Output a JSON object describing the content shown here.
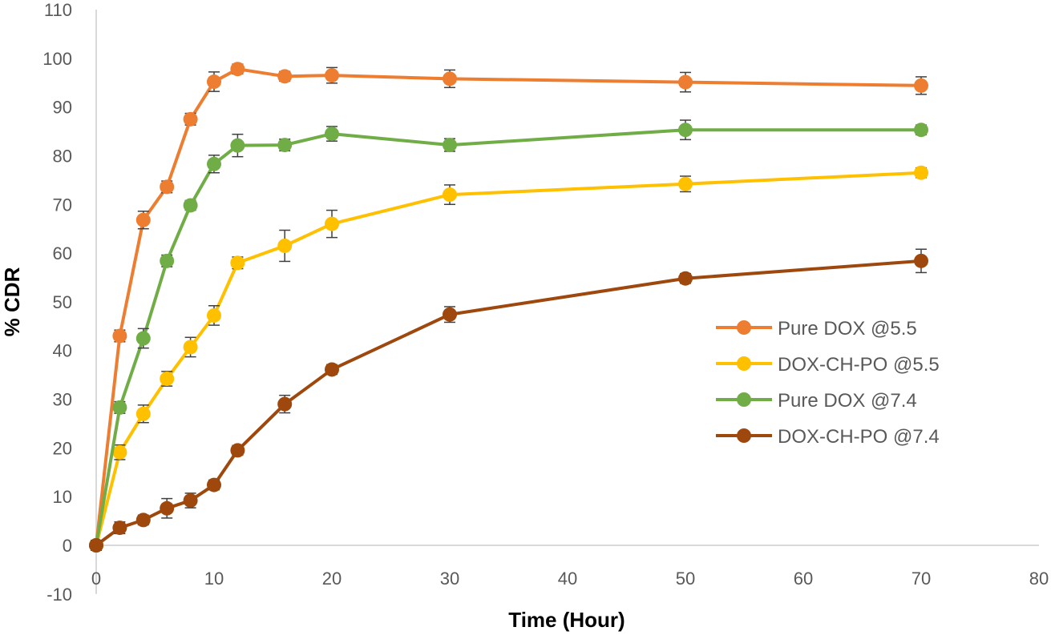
{
  "chart_data": {
    "type": "line",
    "title": "",
    "xlabel": "Time (Hour)",
    "ylabel": "% CDR",
    "xlim": [
      0,
      80
    ],
    "ylim": [
      -10,
      110
    ],
    "xticks": [
      0,
      10,
      20,
      30,
      40,
      50,
      60,
      70,
      80
    ],
    "yticks": [
      -10,
      0,
      10,
      20,
      30,
      40,
      50,
      60,
      70,
      80,
      90,
      100,
      110
    ],
    "grid": false,
    "legend_position": "right",
    "x": [
      0,
      2,
      4,
      6,
      8,
      10,
      12,
      16,
      20,
      30,
      50,
      70
    ],
    "series": [
      {
        "name": "Pure DOX @5.5",
        "color": "#ED7D31",
        "values": [
          0,
          43,
          66.8,
          73.6,
          87.5,
          95.2,
          97.8,
          96.3,
          96.5,
          95.8,
          95.1,
          94.4
        ],
        "errors": [
          1.0,
          1.2,
          1.8,
          1.2,
          1.2,
          2.0,
          1.0,
          1.0,
          1.6,
          1.8,
          2.0,
          1.8
        ]
      },
      {
        "name": "DOX-CH-PO @5.5",
        "color": "#FFC000",
        "values": [
          0,
          19.1,
          27,
          34.2,
          40.7,
          47.2,
          58,
          61.5,
          66,
          72,
          74.2,
          76.5
        ],
        "errors": [
          1.0,
          1.5,
          1.8,
          1.5,
          2.0,
          2.0,
          1.2,
          3.2,
          2.8,
          2.0,
          1.6,
          1.0
        ]
      },
      {
        "name": "Pure DOX @7.4",
        "color": "#70AD47",
        "values": [
          0,
          28.3,
          42.5,
          58.4,
          69.8,
          78.3,
          82.1,
          82.2,
          84.5,
          82.2,
          85.3,
          85.3
        ],
        "errors": [
          1.0,
          1.2,
          2.0,
          1.2,
          1.0,
          1.8,
          2.3,
          1.2,
          1.5,
          1.3,
          2.0,
          1.0
        ]
      },
      {
        "name": "DOX-CH-PO @7.4",
        "color": "#9E480E",
        "values": [
          0,
          3.6,
          5.2,
          7.6,
          9.2,
          12.4,
          19.5,
          29,
          36.1,
          47.4,
          54.8,
          58.4
        ],
        "errors": [
          1.0,
          1.2,
          1.0,
          2.0,
          1.5,
          1.0,
          1.0,
          1.8,
          1.0,
          1.6,
          1.0,
          2.4
        ]
      }
    ]
  }
}
